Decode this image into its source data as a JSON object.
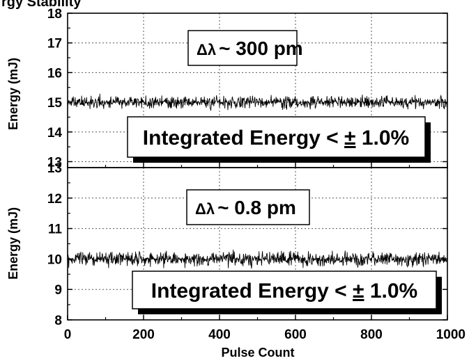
{
  "chart_data": [
    {
      "type": "line",
      "title_fragment": "rgy Stability",
      "annotation_symbol": "Δλ",
      "annotation": "~ 300 pm",
      "box_text": "Integrated Energy < ± 1.0%",
      "box_prefix": "Integrated Energy < ",
      "box_pm": "±",
      "box_suffix": " 1.0%",
      "xlabel": "Pulse Count",
      "ylabel": "Energy (mJ)",
      "xlim": [
        0,
        1000
      ],
      "ylim": [
        12.8,
        18
      ],
      "y_ticks": [
        13,
        14,
        15,
        16,
        17,
        18
      ],
      "x_ticks": [
        0,
        200,
        400,
        600,
        800,
        1000
      ],
      "grid": true,
      "series_mean": 15.0,
      "series_noise_pm": 0.3,
      "n_points": 1000
    },
    {
      "type": "line",
      "annotation_symbol": "Δλ",
      "annotation": "~ 0.8 pm",
      "box_text": "Integrated Energy < ± 1.0%",
      "box_prefix": "Integrated Energy < ",
      "box_pm": "±",
      "box_suffix": " 1.0%",
      "xlabel": "Pulse Count",
      "ylabel": "Energy (mJ)",
      "xlim": [
        0,
        1000
      ],
      "ylim": [
        8,
        13
      ],
      "y_ticks": [
        8,
        9,
        10,
        11,
        12,
        13
      ],
      "x_ticks": [
        0,
        200,
        400,
        600,
        800,
        1000
      ],
      "grid": true,
      "series_mean": 10.0,
      "series_noise_pm": 0.35,
      "n_points": 1000
    }
  ]
}
